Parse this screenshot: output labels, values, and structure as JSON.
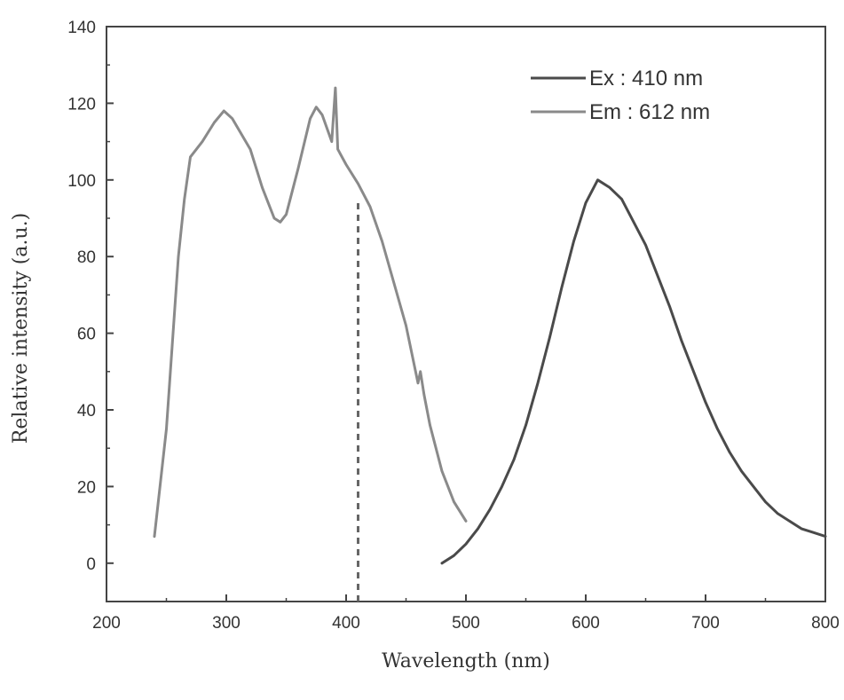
{
  "chart_data": {
    "type": "line",
    "title": "",
    "xlabel": "Wavelength (nm)",
    "ylabel": "Relative intensity (a.u.)",
    "xlim": [
      200,
      800
    ],
    "ylim": [
      -10,
      140
    ],
    "x_ticks": [
      200,
      300,
      400,
      500,
      600,
      700,
      800
    ],
    "y_ticks": [
      0,
      20,
      40,
      60,
      80,
      100,
      120,
      140
    ],
    "x_tick_labels": [
      "200",
      "300",
      "400",
      "500",
      "600",
      "700",
      "800"
    ],
    "y_tick_labels": [
      "0",
      "20",
      "40",
      "60",
      "80",
      "100",
      "120",
      "140"
    ],
    "grid": false,
    "legend_position": "top-right",
    "series": [
      {
        "name": "Ex : 410 nm",
        "color": "#4a4a4a",
        "points": [
          [
            480,
            0
          ],
          [
            490,
            2
          ],
          [
            500,
            5
          ],
          [
            510,
            9
          ],
          [
            520,
            14
          ],
          [
            530,
            20
          ],
          [
            540,
            27
          ],
          [
            550,
            36
          ],
          [
            560,
            47
          ],
          [
            570,
            59
          ],
          [
            580,
            72
          ],
          [
            590,
            84
          ],
          [
            600,
            94
          ],
          [
            610,
            100
          ],
          [
            620,
            98
          ],
          [
            630,
            95
          ],
          [
            640,
            89
          ],
          [
            650,
            83
          ],
          [
            660,
            75
          ],
          [
            670,
            67
          ],
          [
            680,
            58
          ],
          [
            690,
            50
          ],
          [
            700,
            42
          ],
          [
            710,
            35
          ],
          [
            720,
            29
          ],
          [
            730,
            24
          ],
          [
            740,
            20
          ],
          [
            750,
            16
          ],
          [
            760,
            13
          ],
          [
            770,
            11
          ],
          [
            780,
            9
          ],
          [
            790,
            8
          ],
          [
            800,
            7
          ]
        ]
      },
      {
        "name": "Em : 612 nm",
        "color": "#8a8a8a",
        "points": [
          [
            240,
            7
          ],
          [
            250,
            35
          ],
          [
            260,
            80
          ],
          [
            265,
            95
          ],
          [
            270,
            106
          ],
          [
            280,
            110
          ],
          [
            290,
            115
          ],
          [
            298,
            118
          ],
          [
            305,
            116
          ],
          [
            320,
            108
          ],
          [
            330,
            98
          ],
          [
            340,
            90
          ],
          [
            345,
            89
          ],
          [
            350,
            91
          ],
          [
            360,
            103
          ],
          [
            370,
            116
          ],
          [
            375,
            119
          ],
          [
            380,
            117
          ],
          [
            388,
            110
          ],
          [
            391,
            124
          ],
          [
            393,
            108
          ],
          [
            400,
            104
          ],
          [
            410,
            99
          ],
          [
            420,
            93
          ],
          [
            430,
            84
          ],
          [
            440,
            73
          ],
          [
            450,
            62
          ],
          [
            460,
            47
          ],
          [
            462,
            50
          ],
          [
            465,
            44
          ],
          [
            470,
            36
          ],
          [
            480,
            24
          ],
          [
            490,
            16
          ],
          [
            500,
            11
          ]
        ]
      }
    ],
    "reference_line": {
      "x": 410,
      "style": "dashed"
    }
  }
}
